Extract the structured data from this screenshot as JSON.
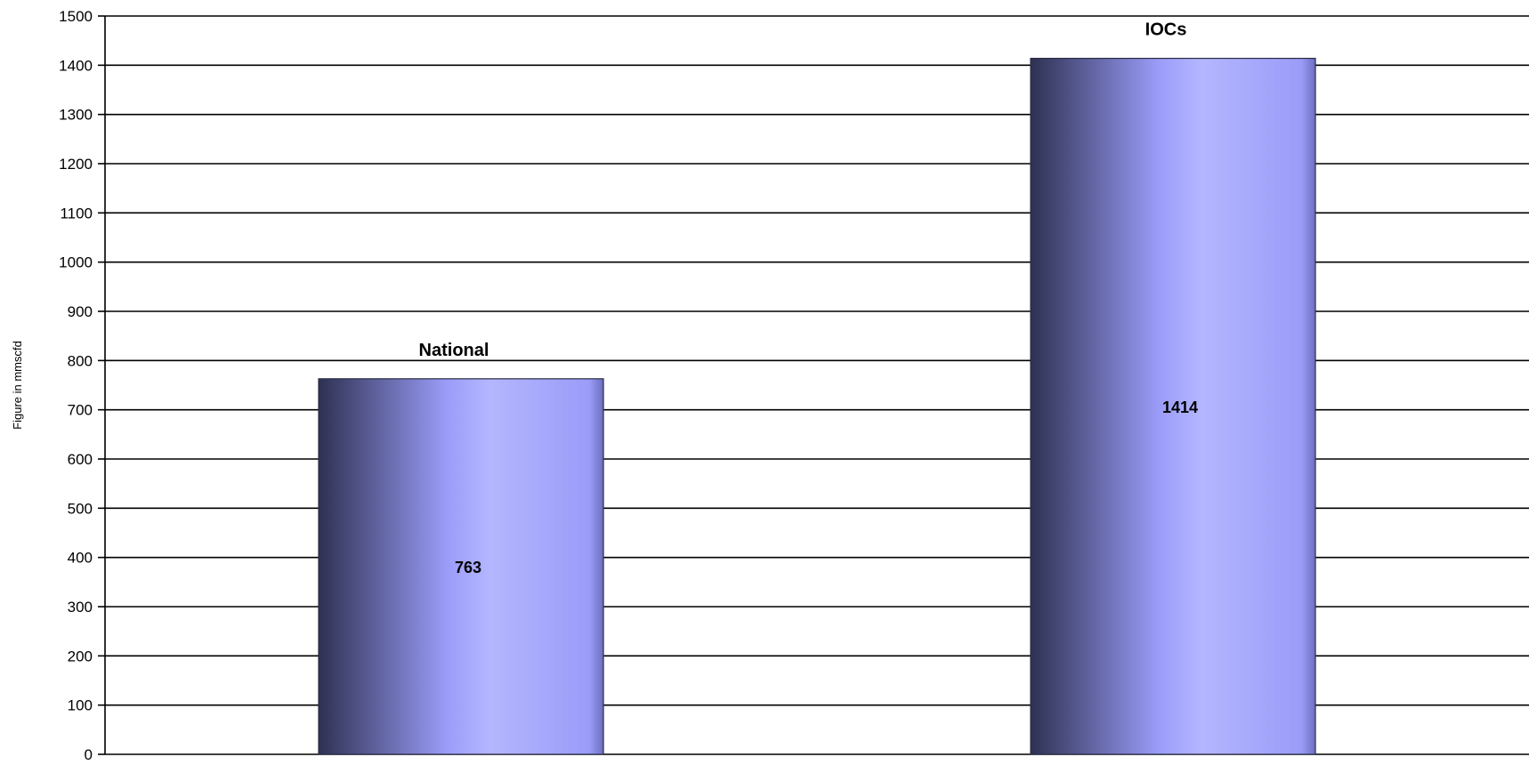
{
  "chart_data": {
    "type": "bar",
    "categories": [
      "National",
      "IOCs"
    ],
    "values": [
      763,
      1414
    ],
    "data_labels": [
      "763",
      "1414"
    ],
    "title": "",
    "xlabel": "",
    "ylabel": "Figure in mmscfd",
    "ylim": [
      0,
      1500
    ],
    "yticks": [
      0,
      100,
      200,
      300,
      400,
      500,
      600,
      700,
      800,
      900,
      1000,
      1100,
      1200,
      1300,
      1400,
      1500
    ],
    "grid": true,
    "legend": "none",
    "colors": {
      "bar_dark": "#2e3152",
      "bar_mid": "#9a9cf8",
      "bar_light": "#b4b6ff",
      "grid": "#000000"
    }
  }
}
